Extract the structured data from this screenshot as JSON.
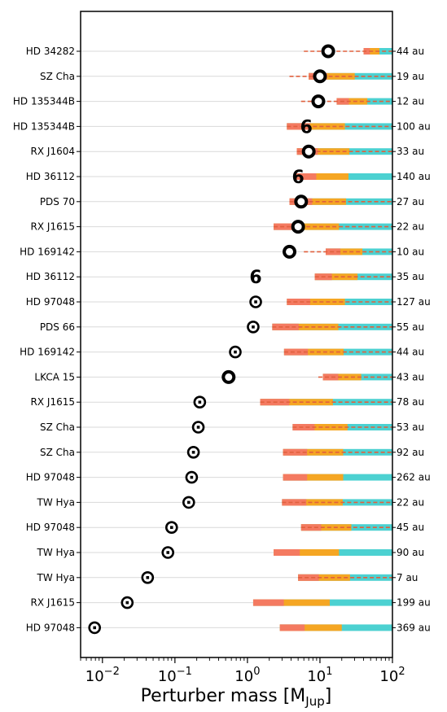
{
  "chart_data": {
    "type": "scatter",
    "title": "",
    "xlabel": "Perturber mass [M",
    "xlabel_sub": "Jup",
    "xlabel_end": "]",
    "xscale": "log",
    "xlim": [
      0.005,
      100
    ],
    "xticks": [
      {
        "value": 0.01,
        "base": "10",
        "exp": "−2"
      },
      {
        "value": 0.1,
        "base": "10",
        "exp": "−1"
      },
      {
        "value": 1,
        "base": "10",
        "exp": "0"
      },
      {
        "value": 10,
        "base": "10",
        "exp": "1"
      },
      {
        "value": 100,
        "base": "10",
        "exp": "2"
      }
    ],
    "grid": "horizontal",
    "colors": {
      "range_red": "#f47a61",
      "range_orange": "#f5a623",
      "range_cyan": "#4cd1d1",
      "dashed": "#e0603e",
      "marker": "#000000",
      "grid": "#d9d9d9"
    },
    "rows": [
      {
        "label": "HD 34282",
        "separation": "44 au",
        "mass": 13,
        "marker": "ring",
        "bar_solid": [
          40,
          100
        ],
        "dash": [
          6,
          100
        ]
      },
      {
        "label": "SZ Cha",
        "separation": "19 au",
        "mass": 10,
        "marker": "ring",
        "bar_solid": [
          7,
          100
        ],
        "dash": [
          3.8,
          100
        ]
      },
      {
        "label": "HD 135344B",
        "separation": "12 au",
        "mass": 9.5,
        "marker": "ring",
        "bar_solid": [
          17,
          100
        ],
        "dash": [
          5.5,
          100
        ]
      },
      {
        "label": "HD 135344B",
        "separation": "100 au",
        "mass": 6.5,
        "marker": "six",
        "bar_solid": [
          3.5,
          100
        ],
        "dash": [
          3.5,
          100
        ]
      },
      {
        "label": "RX J1604",
        "separation": "33 au",
        "mass": 7,
        "marker": "ring",
        "bar_solid": [
          4.8,
          100
        ],
        "dash": [
          4.8,
          100
        ]
      },
      {
        "label": "HD 36112",
        "separation": "140 au",
        "mass": 5,
        "marker": "six",
        "bar_solid": [
          4.5,
          100
        ],
        "dash": null
      },
      {
        "label": "PDS 70",
        "separation": "27 au",
        "mass": 5.5,
        "marker": "ring",
        "bar_solid": [
          3.8,
          100
        ],
        "dash": [
          3.8,
          100
        ]
      },
      {
        "label": "RX J1615",
        "separation": "22 au",
        "mass": 5,
        "marker": "ring",
        "bar_solid": [
          2.3,
          100
        ],
        "dash": [
          2.3,
          100
        ]
      },
      {
        "label": "HD 169142",
        "separation": "10 au",
        "mass": 3.8,
        "marker": "ring",
        "bar_solid": [
          12,
          100
        ],
        "dash": [
          6,
          100
        ]
      },
      {
        "label": "HD 36112",
        "separation": "35 au",
        "mass": 1.3,
        "marker": "six",
        "bar_solid": [
          8.5,
          100
        ],
        "dash": [
          8.5,
          100
        ]
      },
      {
        "label": "HD 97048",
        "separation": "127 au",
        "mass": 1.3,
        "marker": "target",
        "bar_solid": [
          3.5,
          100
        ],
        "dash": [
          3.5,
          100
        ]
      },
      {
        "label": "PDS 66",
        "separation": "55 au",
        "mass": 1.2,
        "marker": "target",
        "bar_solid": [
          2.2,
          100
        ],
        "dash": [
          2.2,
          100
        ]
      },
      {
        "label": "HD 169142",
        "separation": "44 au",
        "mass": 0.68,
        "marker": "target",
        "bar_solid": [
          3.2,
          100
        ],
        "dash": [
          3.2,
          100
        ]
      },
      {
        "label": "LKCA 15",
        "separation": "43 au",
        "mass": 0.55,
        "marker": "ring",
        "bar_solid": [
          11,
          100
        ],
        "dash": [
          9.5,
          100
        ]
      },
      {
        "label": "RX J1615",
        "separation": "78 au",
        "mass": 0.22,
        "marker": "target",
        "bar_solid": [
          1.5,
          100
        ],
        "dash": [
          1.5,
          100
        ]
      },
      {
        "label": "SZ Cha",
        "separation": "53 au",
        "mass": 0.21,
        "marker": "target",
        "bar_solid": [
          4.2,
          100
        ],
        "dash": [
          4.2,
          100
        ]
      },
      {
        "label": "SZ Cha",
        "separation": "92 au",
        "mass": 0.18,
        "marker": "target",
        "bar_solid": [
          3.1,
          100
        ],
        "dash": [
          3.1,
          100
        ]
      },
      {
        "label": "HD 97048",
        "separation": "262 au",
        "mass": 0.17,
        "marker": "target",
        "bar_solid": [
          3.1,
          100
        ],
        "dash": null
      },
      {
        "label": "TW Hya",
        "separation": "22 au",
        "mass": 0.155,
        "marker": "target",
        "bar_solid": [
          3.0,
          100
        ],
        "dash": [
          3.0,
          100
        ]
      },
      {
        "label": "HD 97048",
        "separation": "45 au",
        "mass": 0.09,
        "marker": "target",
        "bar_solid": [
          5.5,
          100
        ],
        "dash": [
          5.5,
          100
        ]
      },
      {
        "label": "TW Hya",
        "separation": "90 au",
        "mass": 0.08,
        "marker": "target",
        "bar_solid": [
          2.3,
          100
        ],
        "dash": null
      },
      {
        "label": "TW Hya",
        "separation": "7 au",
        "mass": 0.042,
        "marker": "target",
        "bar_solid": [
          5.0,
          100
        ],
        "dash": [
          5.0,
          100
        ]
      },
      {
        "label": "RX J1615",
        "separation": "199 au",
        "mass": 0.022,
        "marker": "target",
        "bar_solid": [
          1.2,
          100
        ],
        "dash": null
      },
      {
        "label": "HD 97048",
        "separation": "369 au",
        "mass": 0.0078,
        "marker": "target",
        "bar_solid": [
          2.8,
          100
        ],
        "dash": null
      }
    ]
  }
}
